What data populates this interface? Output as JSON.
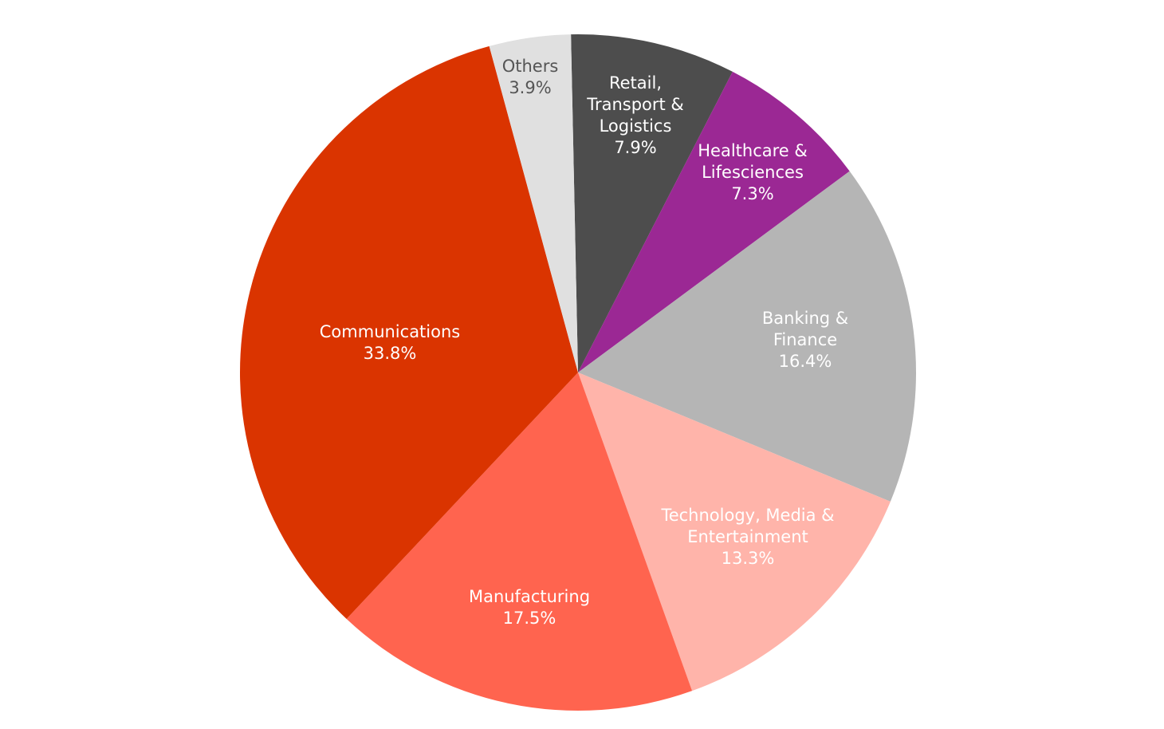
{
  "chart_data": {
    "type": "pie",
    "title": "",
    "start_angle_deg": -1.2,
    "direction": "clockwise",
    "slices": [
      {
        "lines": [
          "Retail,",
          "Transport &",
          "Logistics"
        ],
        "pct_label": "7.9%",
        "value": 7.9,
        "color": "#4d4d4d",
        "text_color": "#ffffff"
      },
      {
        "lines": [
          "Healthcare &",
          "Lifesciences"
        ],
        "pct_label": "7.3%",
        "value": 7.3,
        "color": "#9b2894",
        "text_color": "#ffffff"
      },
      {
        "lines": [
          "Banking &",
          "Finance"
        ],
        "pct_label": "16.4%",
        "value": 16.4,
        "color": "#b5b5b5",
        "text_color": "#ffffff"
      },
      {
        "lines": [
          "Technology, Media &",
          "Entertainment"
        ],
        "pct_label": "13.3%",
        "value": 13.3,
        "color": "#ffb4aa",
        "text_color": "#ffffff"
      },
      {
        "lines": [
          "Manufacturing"
        ],
        "pct_label": "17.5%",
        "value": 17.5,
        "color": "#ff644f",
        "text_color": "#ffffff"
      },
      {
        "lines": [
          "Communications"
        ],
        "pct_label": "33.8%",
        "value": 33.8,
        "color": "#da3400",
        "text_color": "#ffffff"
      },
      {
        "lines": [
          "Others"
        ],
        "pct_label": "3.9%",
        "value": 3.9,
        "color": "#e0e0e0",
        "text_color": "#555555"
      }
    ]
  }
}
